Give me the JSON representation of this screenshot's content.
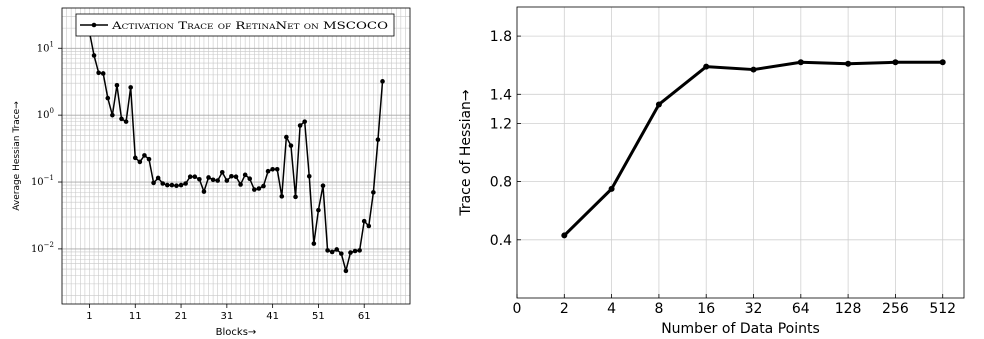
{
  "chart_data": [
    {
      "type": "line",
      "legend": "Activation Trace of RetinaNet on MSCOCO",
      "legend_position": "top",
      "xlabel": "Blocks→",
      "ylabel": "Average Hessian Trace→",
      "yscale": "log",
      "grid": true,
      "xlim": [
        -5,
        71
      ],
      "ylim": [
        0.0015,
        40
      ],
      "xticks": [
        1,
        11,
        21,
        31,
        41,
        51,
        61
      ],
      "yticks": [
        {
          "value": 10,
          "base": "10",
          "exp": "1"
        },
        {
          "value": 1,
          "base": "10",
          "exp": "0"
        },
        {
          "value": 0.1,
          "base": "10",
          "exp": "−1"
        },
        {
          "value": 0.01,
          "base": "10",
          "exp": "−2"
        }
      ],
      "series": [
        {
          "name": "Activation Trace of RetinaNet on MSCOCO",
          "x": [
            1,
            2,
            3,
            4,
            5,
            6,
            7,
            8,
            9,
            10,
            11,
            12,
            13,
            14,
            15,
            16,
            17,
            18,
            19,
            20,
            21,
            22,
            23,
            24,
            25,
            26,
            27,
            28,
            29,
            30,
            31,
            32,
            33,
            34,
            35,
            36,
            37,
            38,
            39,
            40,
            41,
            42,
            43,
            44,
            45,
            46,
            47,
            48,
            49,
            50,
            51,
            52,
            53,
            54,
            55,
            56,
            57,
            58,
            59,
            60,
            61,
            62,
            63,
            64,
            65
          ],
          "y": [
            17.5,
            7.8,
            4.3,
            4.2,
            1.8,
            1.0,
            2.8,
            0.88,
            0.8,
            2.6,
            0.23,
            0.2,
            0.25,
            0.22,
            0.097,
            0.115,
            0.095,
            0.09,
            0.09,
            0.088,
            0.09,
            0.095,
            0.12,
            0.12,
            0.11,
            0.072,
            0.117,
            0.108,
            0.105,
            0.14,
            0.105,
            0.122,
            0.12,
            0.092,
            0.128,
            0.112,
            0.077,
            0.08,
            0.087,
            0.145,
            0.155,
            0.155,
            0.061,
            0.47,
            0.35,
            0.06,
            0.7,
            0.8,
            0.122,
            0.012,
            0.038,
            0.088,
            0.0095,
            0.009,
            0.0098,
            0.0085,
            0.0047,
            0.0088,
            0.0093,
            0.0095,
            0.026,
            0.022,
            0.07,
            0.43,
            3.2
          ]
        }
      ]
    },
    {
      "type": "line",
      "xlabel": "Number of Data Points",
      "ylabel": "Trace of Hessian→",
      "grid": true,
      "xlim": [
        0,
        9
      ],
      "ylim": [
        0,
        2.0
      ],
      "xtick_labels": [
        "0",
        "2",
        "4",
        "8",
        "16",
        "32",
        "64",
        "128",
        "256",
        "512"
      ],
      "yticks": [
        0.4,
        0.8,
        1.2,
        1.4,
        1.8
      ],
      "series": [
        {
          "x": [
            1,
            2,
            3,
            4,
            5,
            6,
            7,
            8,
            9
          ],
          "x_labels": [
            "2",
            "4",
            "8",
            "16",
            "32",
            "64",
            "128",
            "256",
            "512"
          ],
          "y": [
            0.43,
            0.75,
            1.33,
            1.59,
            1.57,
            1.62,
            1.61,
            1.62,
            1.62
          ]
        }
      ]
    }
  ]
}
